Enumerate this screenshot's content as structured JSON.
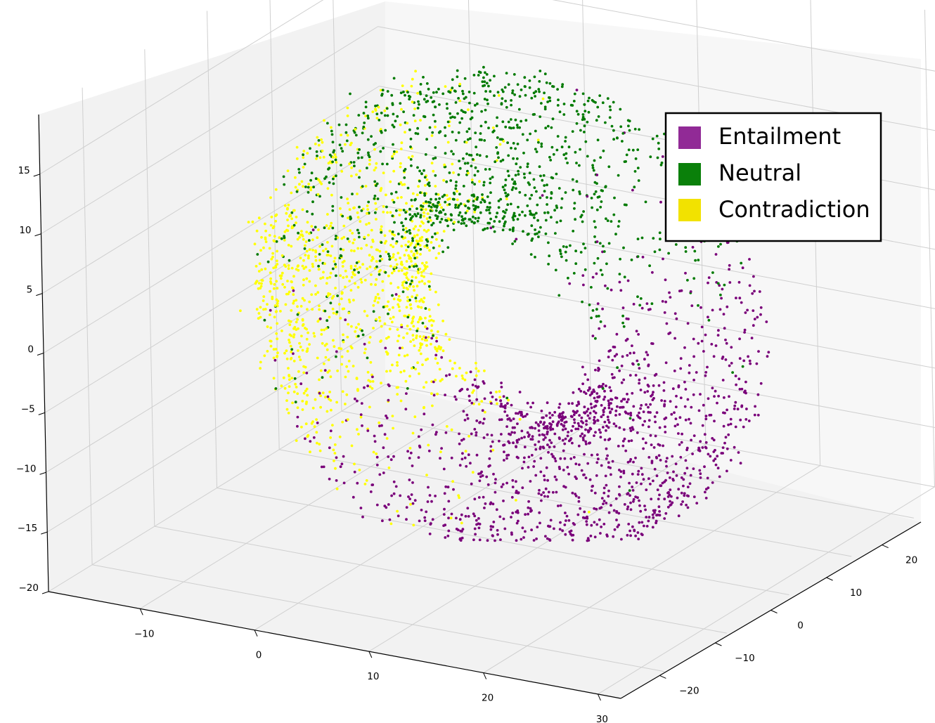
{
  "chart_data": {
    "type": "scatter",
    "projection": "3d",
    "title": "",
    "xlabel": "",
    "ylabel": "",
    "zlabel": "",
    "xlim": [
      -18,
      32
    ],
    "ylim": [
      27,
      -27
    ],
    "zlim": [
      -20,
      20
    ],
    "x_ticks": [
      -10,
      0,
      10,
      20,
      30
    ],
    "y_ticks": [
      20,
      10,
      0,
      -10,
      -20
    ],
    "z_ticks": [
      -20,
      -15,
      -10,
      -5,
      0,
      5,
      10,
      15
    ],
    "x_tick_labels": [
      "−10",
      "0",
      "10",
      "20",
      "30"
    ],
    "y_tick_labels": [
      "20",
      "10",
      "0",
      "−10",
      "−20"
    ],
    "z_tick_labels": [
      "−20",
      "−15",
      "−10",
      "−5",
      "0",
      "5",
      "10",
      "15"
    ],
    "grid": true,
    "legend_position": "top-right",
    "legend": [
      {
        "label": "Entailment",
        "color": "#912a96"
      },
      {
        "label": "Neutral",
        "color": "#0a800a"
      },
      {
        "label": "Contradiction",
        "color": "#f2e200"
      }
    ],
    "series": [
      {
        "name": "Entailment",
        "color": "#7a007a",
        "n_points": 1400,
        "note_shape": "points concentrated on the low-z front/right part of a torus-like ring"
      },
      {
        "name": "Neutral",
        "color": "#007a00",
        "n_points": 1100,
        "note_shape": "points concentrated on the upper arc of the ring"
      },
      {
        "name": "Contradiction",
        "color": "#ffff00",
        "n_points": 1100,
        "note_shape": "points concentrated on the left side of the ring"
      }
    ]
  }
}
